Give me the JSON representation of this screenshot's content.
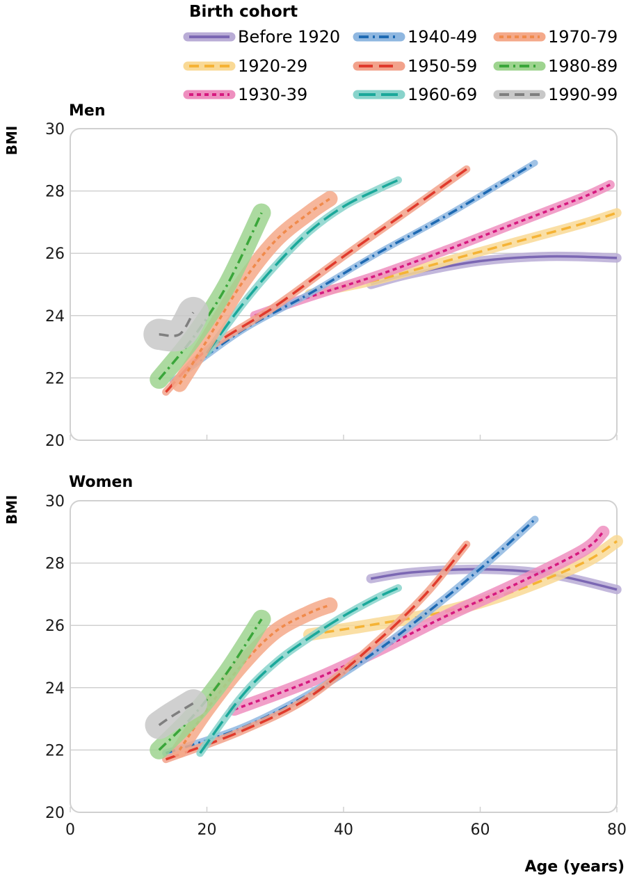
{
  "legend": {
    "title": "Birth cohort"
  },
  "cohorts": [
    {
      "name": "Before 1920",
      "color": "#7b67b3",
      "band": "#b9acd6",
      "dash": "solid"
    },
    {
      "name": "1920-29",
      "color": "#f5b335",
      "band": "#f9d995",
      "dash": "dashed"
    },
    {
      "name": "1930-39",
      "color": "#d6197f",
      "band": "#ee8fbf",
      "dash": "dotted"
    },
    {
      "name": "1940-49",
      "color": "#1e6ab3",
      "band": "#8fb7e0",
      "dash": "dashdot"
    },
    {
      "name": "1950-59",
      "color": "#e03a2c",
      "band": "#f2a28b",
      "dash": "longdash"
    },
    {
      "name": "1960-69",
      "color": "#1aa89a",
      "band": "#88d3cb",
      "dash": "longdash2"
    },
    {
      "name": "1970-79",
      "color": "#f08a4b",
      "band": "#f4a98a",
      "dash": "dotted"
    },
    {
      "name": "1980-89",
      "color": "#3aa63a",
      "band": "#9ed48f",
      "dash": "dashdot"
    },
    {
      "name": "1990-99",
      "color": "#7f7f7f",
      "band": "#c8c8c8",
      "dash": "dashed"
    }
  ],
  "chart_data": [
    {
      "type": "line",
      "title": "Men",
      "xlabel": "Age (years)",
      "ylabel": "BMI",
      "xlim": [
        0,
        80
      ],
      "ylim": [
        20,
        30
      ],
      "xticks": [
        "0",
        "20",
        "40",
        "60",
        "80"
      ],
      "yticks": [
        "20",
        "22",
        "24",
        "26",
        "28",
        "30"
      ],
      "grid": "horizontal",
      "series": [
        {
          "name": "Before 1920",
          "points": [
            [
              44,
              25.0
            ],
            [
              50,
              25.35
            ],
            [
              60,
              25.75
            ],
            [
              70,
              25.9
            ],
            [
              80,
              25.85
            ]
          ],
          "band": 0.15
        },
        {
          "name": "1920-29",
          "points": [
            [
              35,
              24.7
            ],
            [
              45,
              25.15
            ],
            [
              55,
              25.75
            ],
            [
              65,
              26.35
            ],
            [
              75,
              26.95
            ],
            [
              80,
              27.3
            ]
          ],
          "band": 0.15
        },
        {
          "name": "1930-39",
          "points": [
            [
              27,
              24.0
            ],
            [
              35,
              24.6
            ],
            [
              45,
              25.3
            ],
            [
              55,
              26.1
            ],
            [
              65,
              26.95
            ],
            [
              75,
              27.8
            ],
            [
              79,
              28.2
            ]
          ],
          "band": 0.15
        },
        {
          "name": "1940-49",
          "points": [
            [
              15,
              21.9
            ],
            [
              25,
              23.5
            ],
            [
              35,
              24.7
            ],
            [
              45,
              26.0
            ],
            [
              55,
              27.2
            ],
            [
              68,
              28.9
            ]
          ],
          "band": 0.1
        },
        {
          "name": "1950-59",
          "points": [
            [
              14,
              21.55
            ],
            [
              20,
              22.9
            ],
            [
              30,
              24.3
            ],
            [
              40,
              25.9
            ],
            [
              50,
              27.45
            ],
            [
              58,
              28.7
            ]
          ],
          "band": 0.12
        },
        {
          "name": "1960-69",
          "points": [
            [
              20,
              22.8
            ],
            [
              25,
              24.3
            ],
            [
              30,
              25.6
            ],
            [
              35,
              26.7
            ],
            [
              40,
              27.5
            ],
            [
              45,
              28.05
            ],
            [
              48,
              28.35
            ]
          ],
          "band": 0.12
        },
        {
          "name": "1970-79",
          "points": [
            [
              16,
              21.8
            ],
            [
              20,
              23.2
            ],
            [
              25,
              25.0
            ],
            [
              30,
              26.4
            ],
            [
              35,
              27.3
            ],
            [
              38,
              27.75
            ]
          ],
          "band": 0.25
        },
        {
          "name": "1980-89",
          "points": [
            [
              13,
              21.95
            ],
            [
              18,
              23.3
            ],
            [
              23,
              25.0
            ],
            [
              28,
              27.3
            ]
          ],
          "band": 0.3
        },
        {
          "name": "1990-99",
          "points": [
            [
              13,
              23.4
            ],
            [
              16,
              23.4
            ],
            [
              18,
              24.1
            ]
          ],
          "band": 0.5
        }
      ]
    },
    {
      "type": "line",
      "title": "Women",
      "xlabel": "Age (years)",
      "ylabel": "BMI",
      "xlim": [
        0,
        80
      ],
      "ylim": [
        20,
        30
      ],
      "xticks": [
        "0",
        "20",
        "40",
        "60",
        "80"
      ],
      "yticks": [
        "20",
        "22",
        "24",
        "26",
        "28",
        "30"
      ],
      "grid": "horizontal",
      "series": [
        {
          "name": "Before 1920",
          "points": [
            [
              44,
              27.5
            ],
            [
              50,
              27.7
            ],
            [
              60,
              27.8
            ],
            [
              70,
              27.65
            ],
            [
              80,
              27.15
            ]
          ],
          "band": 0.15
        },
        {
          "name": "1920-29",
          "points": [
            [
              35,
              25.7
            ],
            [
              45,
              26.05
            ],
            [
              55,
              26.45
            ],
            [
              65,
              27.1
            ],
            [
              75,
              28.0
            ],
            [
              80,
              28.7
            ]
          ],
          "band": 0.2
        },
        {
          "name": "1930-39",
          "points": [
            [
              24,
              23.3
            ],
            [
              35,
              24.2
            ],
            [
              45,
              25.2
            ],
            [
              55,
              26.3
            ],
            [
              65,
              27.3
            ],
            [
              75,
              28.4
            ],
            [
              78,
              29.0
            ]
          ],
          "band": 0.2
        },
        {
          "name": "1940-49",
          "points": [
            [
              14,
              21.9
            ],
            [
              25,
              22.7
            ],
            [
              35,
              23.8
            ],
            [
              45,
              25.2
            ],
            [
              55,
              26.9
            ],
            [
              62,
              28.2
            ],
            [
              68,
              29.4
            ]
          ],
          "band": 0.12
        },
        {
          "name": "1950-59",
          "points": [
            [
              14,
              21.7
            ],
            [
              25,
              22.6
            ],
            [
              35,
              23.7
            ],
            [
              45,
              25.5
            ],
            [
              52,
              27.0
            ],
            [
              58,
              28.6
            ]
          ],
          "band": 0.12
        },
        {
          "name": "1960-69",
          "points": [
            [
              19,
              21.9
            ],
            [
              25,
              23.7
            ],
            [
              30,
              24.8
            ],
            [
              35,
              25.6
            ],
            [
              40,
              26.3
            ],
            [
              45,
              26.9
            ],
            [
              48,
              27.2
            ]
          ],
          "band": 0.12
        },
        {
          "name": "1970-79",
          "points": [
            [
              16,
              22.0
            ],
            [
              20,
              23.3
            ],
            [
              25,
              24.7
            ],
            [
              30,
              25.8
            ],
            [
              35,
              26.4
            ],
            [
              38,
              26.65
            ]
          ],
          "band": 0.25
        },
        {
          "name": "1980-89",
          "points": [
            [
              13,
              22.0
            ],
            [
              18,
              23.1
            ],
            [
              23,
              24.5
            ],
            [
              28,
              26.2
            ]
          ],
          "band": 0.3
        },
        {
          "name": "1990-99",
          "points": [
            [
              13,
              22.8
            ],
            [
              15,
              23.1
            ],
            [
              18,
              23.5
            ]
          ],
          "band": 0.45
        }
      ]
    }
  ]
}
